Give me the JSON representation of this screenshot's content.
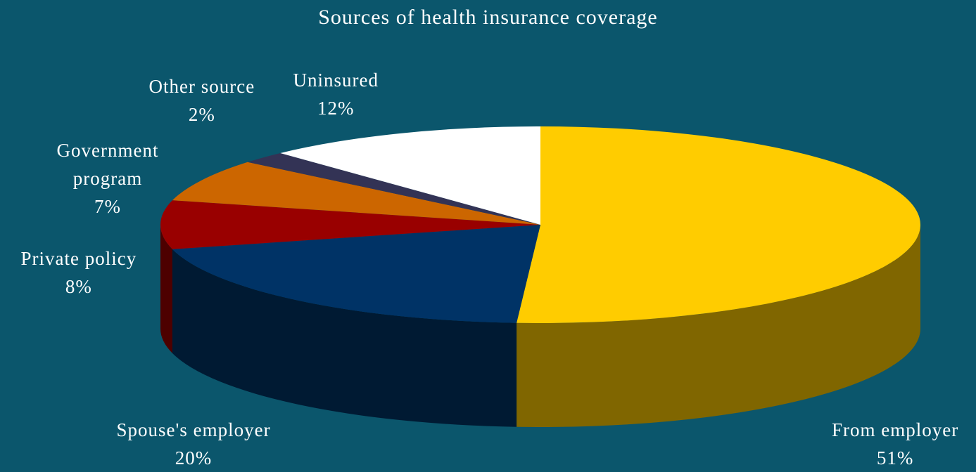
{
  "chart_data": {
    "type": "pie",
    "title": "Sources of health insurance coverage",
    "slices": [
      {
        "label": "From employer",
        "value": 51,
        "value_label": "51%",
        "color": "#ffcc00",
        "side_color": "#806600"
      },
      {
        "label": "Spouse's employer",
        "value": 20,
        "value_label": "20%",
        "color": "#003366",
        "side_color": "#001a33"
      },
      {
        "label": "Private policy",
        "value": 8,
        "value_label": "8%",
        "color": "#990000",
        "side_color": "#4d0000"
      },
      {
        "label": "Government program",
        "label_lines": [
          "Government",
          "program"
        ],
        "value": 7,
        "value_label": "7%",
        "color": "#cc6600",
        "side_color": "#663300"
      },
      {
        "label": "Other source",
        "value": 2,
        "value_label": "2%",
        "color": "#333355",
        "side_color": "#1a1a2b"
      },
      {
        "label": "Uninsured",
        "value": 12,
        "value_label": "12%",
        "color": "#ffffff",
        "side_color": "#808080"
      }
    ],
    "three_d": true,
    "legend": "none"
  }
}
